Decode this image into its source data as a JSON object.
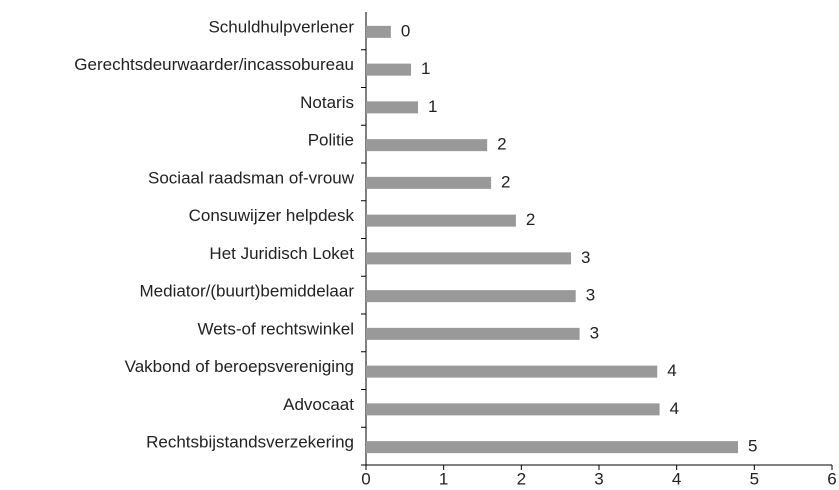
{
  "chart_data": {
    "type": "barh",
    "categories": [
      "Schuldhulpverlener",
      "Gerechtsdeurwaarder/incassobureau",
      "Notaris",
      "Politie",
      "Sociaal raadsman of-vrouw",
      "Consuwijzer helpdesk",
      "Het Juridisch Loket",
      "Mediator/(buurt)bemiddelaar",
      "Wets-of rechtswinkel",
      "Vakbond of beroepsvereniging",
      "Advocaat",
      "Rechtsbijstandsverzekering"
    ],
    "values": [
      0.32,
      0.58,
      0.67,
      1.56,
      1.61,
      1.93,
      2.64,
      2.7,
      2.75,
      3.75,
      3.78,
      4.79
    ],
    "value_labels": [
      "0",
      "1",
      "1",
      "2",
      "2",
      "2",
      "3",
      "3",
      "3",
      "4",
      "4",
      "5"
    ],
    "color": "#999999",
    "xlim": [
      0,
      6
    ],
    "xticks": [
      0,
      1,
      2,
      3,
      4,
      5,
      6
    ]
  }
}
